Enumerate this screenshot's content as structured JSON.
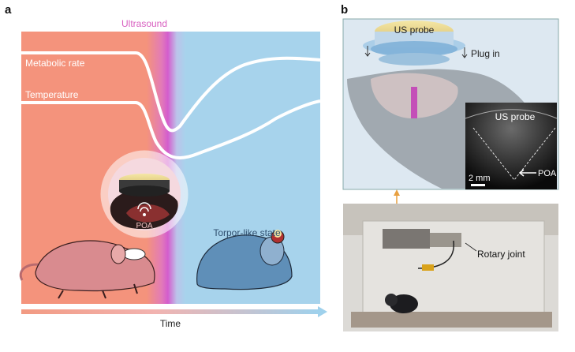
{
  "panel_a": {
    "letter": "a",
    "ultrasound_label": "Ultrasound",
    "metabolic_rate_label": "Metabolic rate",
    "temperature_label": "Temperature",
    "poa_label": "POA",
    "torpor_label": "Torpor-like state",
    "time_label": "Time",
    "colors": {
      "pre": "#f4937c",
      "ultrasound": "#e25bc8",
      "post": "#a7d3ec"
    }
  },
  "panel_b": {
    "letter": "b",
    "probe_label": "US probe",
    "plug_in_label": "Plug in",
    "inset_probe_label": "US probe",
    "inset_poa_label": "POA",
    "scale_label": "2 mm",
    "rotary_joint_label": "Rotary joint"
  }
}
